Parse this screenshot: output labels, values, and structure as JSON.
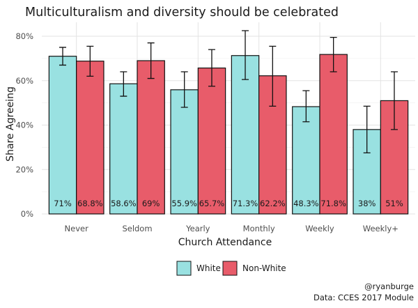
{
  "chart_data": {
    "type": "bar",
    "title": "Multiculturalism and diversity should be celebrated",
    "xlabel": "Church Attendance",
    "ylabel": "Share Agreeing",
    "ylim": [
      0,
      85
    ],
    "y_ticks": [
      {
        "value": 0,
        "label": "0%"
      },
      {
        "value": 20,
        "label": "20%"
      },
      {
        "value": 40,
        "label": "40%"
      },
      {
        "value": 60,
        "label": "60%"
      },
      {
        "value": 80,
        "label": "80%"
      }
    ],
    "categories": [
      "Never",
      "Seldom",
      "Yearly",
      "Monthly",
      "Weekly",
      "Weekly+"
    ],
    "series": [
      {
        "name": "White",
        "color": "#99e1e1",
        "values": [
          71,
          58.6,
          55.9,
          71.3,
          48.3,
          38
        ],
        "labels": [
          "71%",
          "58.6%",
          "55.9%",
          "71.3%",
          "48.3%",
          "38%"
        ],
        "err_low": [
          67,
          53,
          48,
          60.5,
          41.5,
          27.5
        ],
        "err_high": [
          75,
          64,
          64,
          82.5,
          55.5,
          48.5
        ]
      },
      {
        "name": "Non-White",
        "color": "#e85c6a",
        "values": [
          68.8,
          69,
          65.7,
          62.2,
          71.8,
          51
        ],
        "labels": [
          "68.8%",
          "69%",
          "65.7%",
          "62.2%",
          "71.8%",
          "51%"
        ],
        "err_low": [
          62,
          61,
          57.5,
          48.5,
          64,
          38
        ],
        "err_high": [
          75.5,
          77,
          74,
          75.5,
          79.5,
          64
        ]
      }
    ],
    "legend_position": "bottom",
    "grid": true
  },
  "caption": {
    "handle": "@ryanburge",
    "source": "Data: CCES 2017 Module"
  }
}
